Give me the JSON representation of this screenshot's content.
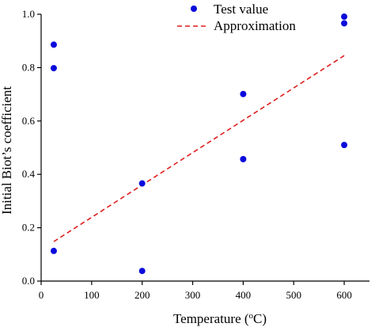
{
  "chart_data": {
    "type": "scatter",
    "xlabel": "Temperature (",
    "xlabel_sup": "o",
    "xlabel_unit": "C)",
    "ylabel": "Initial Biot’s coefficient",
    "xlim": [
      0,
      650
    ],
    "ylim": [
      0,
      1.0
    ],
    "xticks": [
      "0",
      "100",
      "200",
      "300",
      "400",
      "500",
      "600"
    ],
    "yticks": [
      "0.0",
      "0.2",
      "0.4",
      "0.6",
      "0.8",
      "1.0"
    ],
    "legend_position": "top-center",
    "grid": false,
    "series": [
      {
        "name": "Test value",
        "kind": "scatter",
        "color": "#0a0adc",
        "points": [
          [
            25,
            0.886
          ],
          [
            25,
            0.798
          ],
          [
            25,
            0.113
          ],
          [
            200,
            0.366
          ],
          [
            200,
            0.038
          ],
          [
            400,
            0.701
          ],
          [
            400,
            0.457
          ],
          [
            600,
            0.991
          ],
          [
            600,
            0.966
          ],
          [
            600,
            0.51
          ]
        ]
      },
      {
        "name": "Approximation",
        "kind": "line",
        "style": "dashed",
        "color": "#e01e1e",
        "points": [
          [
            25,
            0.148
          ],
          [
            600,
            0.845
          ]
        ]
      }
    ]
  }
}
